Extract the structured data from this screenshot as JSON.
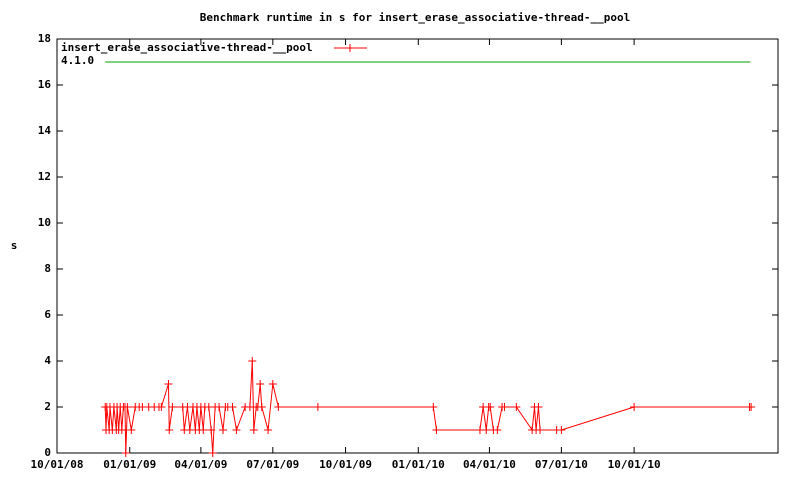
{
  "chart_data": {
    "type": "line",
    "title": "Benchmark runtime in s for insert_erase_associative-thread-__pool",
    "y_label": "s",
    "xlim": [
      "10/01/08",
      "04/01/11"
    ],
    "xticks": [
      "10/01/08",
      "01/01/09",
      "04/01/09",
      "07/01/09",
      "10/01/09",
      "01/01/10",
      "04/01/10",
      "07/01/10",
      "10/01/10"
    ],
    "ylim": [
      0,
      18
    ],
    "yticks": [
      0,
      2,
      4,
      6,
      8,
      10,
      12,
      14,
      16,
      18
    ],
    "legend": "top-left",
    "series": [
      {
        "name": "insert_erase_associative-thread-__pool",
        "color": "#ff0000",
        "markers": true,
        "x": [
          "12/01/08",
          "12/02/08",
          "12/03/08",
          "12/06/08",
          "12/07/08",
          "12/10/08",
          "12/12/08",
          "12/15/08",
          "12/16/08",
          "12/18/08",
          "12/20/08",
          "12/22/08",
          "12/24/08",
          "12/26/08",
          "12/27/08",
          "12/29/08",
          "01/03/09",
          "01/08/09",
          "01/13/09",
          "01/17/09",
          "01/25/09",
          "02/01/09",
          "02/07/09",
          "02/10/09",
          "02/19/09",
          "02/20/09",
          "02/24/09",
          "03/09/09",
          "03/11/09",
          "03/15/09",
          "03/18/09",
          "03/22/09",
          "03/25/09",
          "03/27/09",
          "03/30/09",
          "04/01/09",
          "04/04/09",
          "04/06/09",
          "04/11/09",
          "04/14/09",
          "04/16/09",
          "04/19/09",
          "04/24/09",
          "04/29/09",
          "05/02/09",
          "05/05/09",
          "05/11/09",
          "05/16/09",
          "05/27/09",
          "06/02/09",
          "06/05/09",
          "06/07/09",
          "06/10/09",
          "06/12/09",
          "06/15/09",
          "06/17/09",
          "06/25/09",
          "07/01/09",
          "07/08/09",
          "08/27/09",
          "01/20/10",
          "01/24/10",
          "03/20/10",
          "03/24/10",
          "03/28/10",
          "03/31/10",
          "04/02/10",
          "04/06/10",
          "04/11/10",
          "04/17/10",
          "04/20/10",
          "05/05/10",
          "05/25/10",
          "05/28/10",
          "05/30/10",
          "06/02/10",
          "06/04/10",
          "06/25/10",
          "07/01/10",
          "10/01/10",
          "02/24/11",
          "02/26/11"
        ],
        "values": [
          2,
          1,
          2,
          1,
          2,
          1,
          2,
          1,
          2,
          1,
          2,
          1,
          2,
          2,
          0,
          2,
          1,
          2,
          2,
          2,
          2,
          2,
          2,
          2,
          3,
          1,
          2,
          2,
          1,
          2,
          1,
          2,
          1,
          2,
          1,
          2,
          1,
          2,
          2,
          1,
          0,
          2,
          2,
          1,
          2,
          2,
          2,
          1,
          2,
          2,
          4,
          1,
          2,
          2,
          3,
          2,
          1,
          3,
          2,
          2,
          2,
          1,
          1,
          2,
          1,
          2,
          2,
          1,
          1,
          2,
          2,
          2,
          1,
          2,
          1,
          2,
          1,
          1,
          1,
          2,
          2,
          2
        ]
      },
      {
        "name": "4.1.0",
        "color": "#00a000",
        "markers": false,
        "x": [
          "12/01/08",
          "02/25/11"
        ],
        "values": [
          17,
          17
        ]
      }
    ]
  }
}
